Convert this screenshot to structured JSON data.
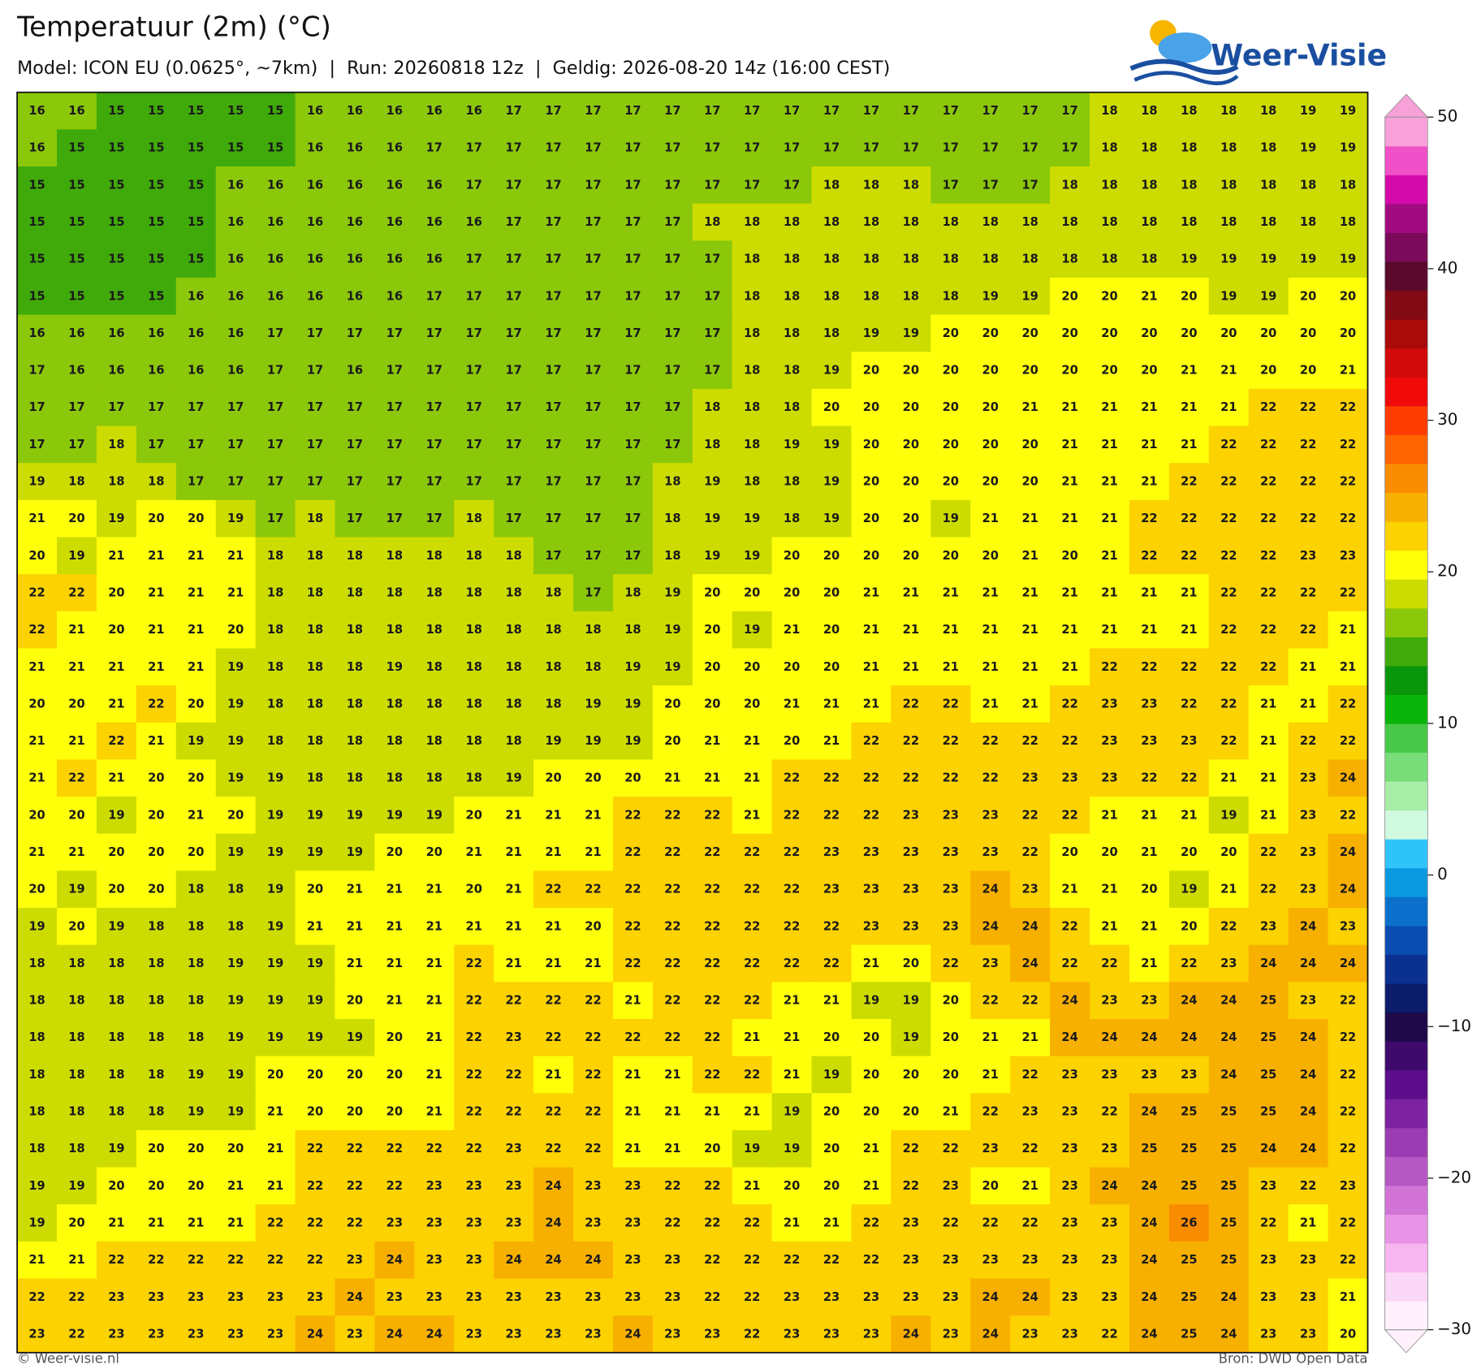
{
  "header": {
    "title": "Temperatuur (2m) (°C)",
    "subtitle": "Model: ICON EU (0.0625°, ~7km)  |  Run: 20260818 12z  |  Geldig: 2026-08-20 14z (16:00 CEST)",
    "logo": "Weer-Visie"
  },
  "map": {
    "type": "grid",
    "values": [
      [
        16,
        16,
        15,
        15,
        15,
        15,
        15,
        16,
        16,
        16,
        16,
        16,
        17,
        17,
        17,
        17,
        17,
        17,
        17,
        17,
        17,
        17,
        17,
        17,
        17,
        17,
        17,
        18,
        18,
        18,
        18,
        18,
        19,
        19
      ],
      [
        16,
        15,
        15,
        15,
        15,
        15,
        15,
        16,
        16,
        16,
        17,
        17,
        17,
        17,
        17,
        17,
        17,
        17,
        17,
        17,
        17,
        17,
        17,
        17,
        17,
        17,
        17,
        18,
        18,
        18,
        18,
        18,
        19,
        19
      ],
      [
        15,
        15,
        15,
        15,
        15,
        16,
        16,
        16,
        16,
        16,
        16,
        17,
        17,
        17,
        17,
        17,
        17,
        17,
        17,
        17,
        18,
        18,
        18,
        17,
        17,
        17,
        18,
        18,
        18,
        18,
        18,
        18,
        18,
        18
      ],
      [
        15,
        15,
        15,
        15,
        15,
        16,
        16,
        16,
        16,
        16,
        16,
        16,
        17,
        17,
        17,
        17,
        17,
        18,
        18,
        18,
        18,
        18,
        18,
        18,
        18,
        18,
        18,
        18,
        18,
        18,
        18,
        18,
        18,
        18
      ],
      [
        15,
        15,
        15,
        15,
        15,
        16,
        16,
        16,
        16,
        16,
        16,
        17,
        17,
        17,
        17,
        17,
        17,
        17,
        18,
        18,
        18,
        18,
        18,
        18,
        18,
        18,
        18,
        18,
        18,
        19,
        19,
        19,
        19,
        19
      ],
      [
        15,
        15,
        15,
        15,
        16,
        16,
        16,
        16,
        16,
        16,
        17,
        17,
        17,
        17,
        17,
        17,
        17,
        17,
        18,
        18,
        18,
        18,
        18,
        18,
        19,
        19,
        20,
        20,
        21,
        20,
        19,
        19,
        20,
        20
      ],
      [
        16,
        16,
        16,
        16,
        16,
        16,
        17,
        17,
        17,
        17,
        17,
        17,
        17,
        17,
        17,
        17,
        17,
        17,
        18,
        18,
        18,
        19,
        19,
        20,
        20,
        20,
        20,
        20,
        20,
        20,
        20,
        20,
        20,
        20
      ],
      [
        17,
        16,
        16,
        16,
        16,
        16,
        17,
        17,
        16,
        17,
        17,
        17,
        17,
        17,
        17,
        17,
        17,
        17,
        18,
        18,
        19,
        20,
        20,
        20,
        20,
        20,
        20,
        20,
        20,
        21,
        21,
        20,
        20,
        21
      ],
      [
        17,
        17,
        17,
        17,
        17,
        17,
        17,
        17,
        17,
        17,
        17,
        17,
        17,
        17,
        17,
        17,
        17,
        18,
        18,
        18,
        20,
        20,
        20,
        20,
        20,
        21,
        21,
        21,
        21,
        21,
        21,
        22,
        22,
        22
      ],
      [
        17,
        17,
        18,
        17,
        17,
        17,
        17,
        17,
        17,
        17,
        17,
        17,
        17,
        17,
        17,
        17,
        17,
        18,
        18,
        19,
        19,
        20,
        20,
        20,
        20,
        20,
        21,
        21,
        21,
        21,
        22,
        22,
        22,
        22
      ],
      [
        19,
        18,
        18,
        18,
        17,
        17,
        17,
        17,
        17,
        17,
        17,
        17,
        17,
        17,
        17,
        17,
        18,
        19,
        18,
        18,
        19,
        20,
        20,
        20,
        20,
        20,
        21,
        21,
        21,
        22,
        22,
        22,
        22,
        22
      ],
      [
        21,
        20,
        19,
        20,
        20,
        19,
        17,
        18,
        17,
        17,
        17,
        18,
        17,
        17,
        17,
        17,
        18,
        19,
        19,
        18,
        19,
        20,
        20,
        19,
        21,
        21,
        21,
        21,
        22,
        22,
        22,
        22,
        22,
        22
      ],
      [
        20,
        19,
        21,
        21,
        21,
        21,
        18,
        18,
        18,
        18,
        18,
        18,
        18,
        17,
        17,
        17,
        18,
        19,
        19,
        20,
        20,
        20,
        20,
        20,
        20,
        21,
        20,
        21,
        22,
        22,
        22,
        22,
        23,
        23
      ],
      [
        22,
        22,
        20,
        21,
        21,
        21,
        18,
        18,
        18,
        18,
        18,
        18,
        18,
        18,
        17,
        18,
        19,
        20,
        20,
        20,
        20,
        21,
        21,
        21,
        21,
        21,
        21,
        21,
        21,
        21,
        22,
        22,
        22,
        22
      ],
      [
        22,
        21,
        20,
        21,
        21,
        20,
        18,
        18,
        18,
        18,
        18,
        18,
        18,
        18,
        18,
        18,
        19,
        20,
        19,
        21,
        20,
        21,
        21,
        21,
        21,
        21,
        21,
        21,
        21,
        21,
        22,
        22,
        22,
        21
      ],
      [
        21,
        21,
        21,
        21,
        21,
        19,
        18,
        18,
        18,
        19,
        18,
        18,
        18,
        18,
        18,
        19,
        19,
        20,
        20,
        20,
        20,
        21,
        21,
        21,
        21,
        21,
        21,
        22,
        22,
        22,
        22,
        22,
        21,
        21
      ],
      [
        20,
        20,
        21,
        22,
        20,
        19,
        18,
        18,
        18,
        18,
        18,
        18,
        18,
        18,
        19,
        19,
        20,
        20,
        20,
        21,
        21,
        21,
        22,
        22,
        21,
        21,
        22,
        23,
        23,
        22,
        22,
        21,
        21,
        22
      ],
      [
        21,
        21,
        22,
        21,
        19,
        19,
        18,
        18,
        18,
        18,
        18,
        18,
        18,
        19,
        19,
        19,
        20,
        21,
        21,
        20,
        21,
        22,
        22,
        22,
        22,
        22,
        22,
        23,
        23,
        23,
        22,
        21,
        22,
        22
      ],
      [
        21,
        22,
        21,
        20,
        20,
        19,
        19,
        18,
        18,
        18,
        18,
        18,
        19,
        20,
        20,
        20,
        21,
        21,
        21,
        22,
        22,
        22,
        22,
        22,
        22,
        23,
        23,
        23,
        22,
        22,
        21,
        21,
        23,
        24
      ],
      [
        20,
        20,
        19,
        20,
        21,
        20,
        19,
        19,
        19,
        19,
        19,
        20,
        21,
        21,
        21,
        22,
        22,
        22,
        21,
        22,
        22,
        22,
        23,
        23,
        23,
        22,
        22,
        21,
        21,
        21,
        19,
        21,
        23,
        22
      ],
      [
        21,
        21,
        20,
        20,
        20,
        19,
        19,
        19,
        19,
        20,
        20,
        21,
        21,
        21,
        21,
        22,
        22,
        22,
        22,
        22,
        23,
        23,
        23,
        23,
        23,
        22,
        20,
        20,
        21,
        20,
        20,
        22,
        23,
        24
      ],
      [
        20,
        19,
        20,
        20,
        18,
        18,
        19,
        20,
        21,
        21,
        21,
        20,
        21,
        22,
        22,
        22,
        22,
        22,
        22,
        22,
        23,
        23,
        23,
        23,
        24,
        23,
        21,
        21,
        20,
        19,
        21,
        22,
        23,
        24
      ],
      [
        19,
        20,
        19,
        18,
        18,
        18,
        19,
        21,
        21,
        21,
        21,
        21,
        21,
        21,
        20,
        22,
        22,
        22,
        22,
        22,
        22,
        23,
        23,
        23,
        24,
        24,
        22,
        21,
        21,
        20,
        22,
        23,
        24,
        23
      ],
      [
        18,
        18,
        18,
        18,
        18,
        19,
        19,
        19,
        21,
        21,
        21,
        22,
        21,
        21,
        21,
        22,
        22,
        22,
        22,
        22,
        22,
        21,
        20,
        22,
        23,
        24,
        22,
        22,
        21,
        22,
        23,
        24,
        24,
        24
      ],
      [
        18,
        18,
        18,
        18,
        18,
        19,
        19,
        19,
        20,
        21,
        21,
        22,
        22,
        22,
        22,
        21,
        22,
        22,
        22,
        21,
        21,
        19,
        19,
        20,
        22,
        22,
        24,
        23,
        23,
        24,
        24,
        25,
        23,
        22
      ],
      [
        18,
        18,
        18,
        18,
        18,
        19,
        19,
        19,
        19,
        20,
        21,
        22,
        23,
        22,
        22,
        22,
        22,
        22,
        21,
        21,
        20,
        20,
        19,
        20,
        21,
        21,
        24,
        24,
        24,
        24,
        24,
        25,
        24,
        22
      ],
      [
        18,
        18,
        18,
        18,
        19,
        19,
        20,
        20,
        20,
        20,
        21,
        22,
        22,
        21,
        22,
        21,
        21,
        22,
        22,
        21,
        19,
        20,
        20,
        20,
        21,
        22,
        23,
        23,
        23,
        23,
        24,
        25,
        24,
        22
      ],
      [
        18,
        18,
        18,
        18,
        19,
        19,
        21,
        20,
        20,
        20,
        21,
        22,
        22,
        22,
        22,
        21,
        21,
        21,
        21,
        19,
        20,
        20,
        20,
        21,
        22,
        23,
        23,
        22,
        24,
        25,
        25,
        25,
        24,
        22
      ],
      [
        18,
        18,
        19,
        20,
        20,
        20,
        21,
        22,
        22,
        22,
        22,
        22,
        23,
        22,
        22,
        21,
        21,
        20,
        19,
        19,
        20,
        21,
        22,
        22,
        23,
        22,
        23,
        23,
        25,
        25,
        25,
        24,
        24,
        22
      ],
      [
        19,
        19,
        20,
        20,
        20,
        21,
        21,
        22,
        22,
        22,
        23,
        23,
        23,
        24,
        23,
        23,
        22,
        22,
        21,
        20,
        20,
        21,
        22,
        23,
        20,
        21,
        23,
        24,
        24,
        25,
        25,
        23,
        22,
        23
      ],
      [
        19,
        20,
        21,
        21,
        21,
        21,
        22,
        22,
        22,
        23,
        23,
        23,
        23,
        24,
        23,
        23,
        22,
        22,
        22,
        21,
        21,
        22,
        23,
        22,
        22,
        22,
        23,
        23,
        24,
        26,
        25,
        22,
        21,
        22
      ],
      [
        21,
        21,
        22,
        22,
        22,
        22,
        22,
        22,
        23,
        24,
        23,
        23,
        24,
        24,
        24,
        23,
        23,
        22,
        22,
        22,
        22,
        22,
        23,
        23,
        23,
        23,
        23,
        23,
        24,
        25,
        25,
        23,
        23,
        22
      ],
      [
        22,
        22,
        23,
        23,
        23,
        23,
        23,
        23,
        24,
        23,
        23,
        23,
        23,
        23,
        23,
        23,
        23,
        22,
        22,
        23,
        23,
        23,
        23,
        23,
        24,
        24,
        23,
        23,
        24,
        25,
        24,
        23,
        23,
        21
      ],
      [
        23,
        22,
        23,
        23,
        23,
        23,
        23,
        24,
        23,
        24,
        24,
        23,
        23,
        23,
        23,
        24,
        23,
        23,
        22,
        23,
        23,
        23,
        24,
        23,
        24,
        23,
        23,
        22,
        24,
        25,
        24,
        23,
        23,
        20
      ]
    ]
  },
  "colorbar": {
    "lim": [
      -30,
      50
    ],
    "ticks": [
      50,
      40,
      30,
      20,
      10,
      0,
      {
        "value": -10,
        "label": "−10"
      },
      {
        "value": -20,
        "label": "−20"
      },
      {
        "value": -30,
        "label": "−30"
      }
    ],
    "colors": [
      "#fff0fc",
      "#fcd8f7",
      "#f8b6f0",
      "#e894e6",
      "#d274d6",
      "#b658c4",
      "#9a3cb2",
      "#7c22a0",
      "#5c0e8c",
      "#3e0a6c",
      "#1e0a48",
      "#0a1c6a",
      "#0a3090",
      "#0a4cb0",
      "#0a70cc",
      "#0a98e0",
      "#2ec4fa",
      "#d0fae0",
      "#a8eea8",
      "#78dc78",
      "#48c848",
      "#0ab40a",
      "#0a960a",
      "#40aa0a",
      "#8cc80a",
      "#cddc00",
      "#ffff0a",
      "#fcd200",
      "#f8b000",
      "#fa8c00",
      "#ff6400",
      "#ff3c00",
      "#f00a0a",
      "#d20a0a",
      "#aa0a0a",
      "#820a14",
      "#5a0a2a",
      "#7a0a5a",
      "#a00a80",
      "#d20aaa",
      "#f050c8",
      "#f8a0d8"
    ]
  },
  "footer": {
    "credit": "© Weer-visie.nl",
    "source": "Bron: DWD Open Data"
  }
}
